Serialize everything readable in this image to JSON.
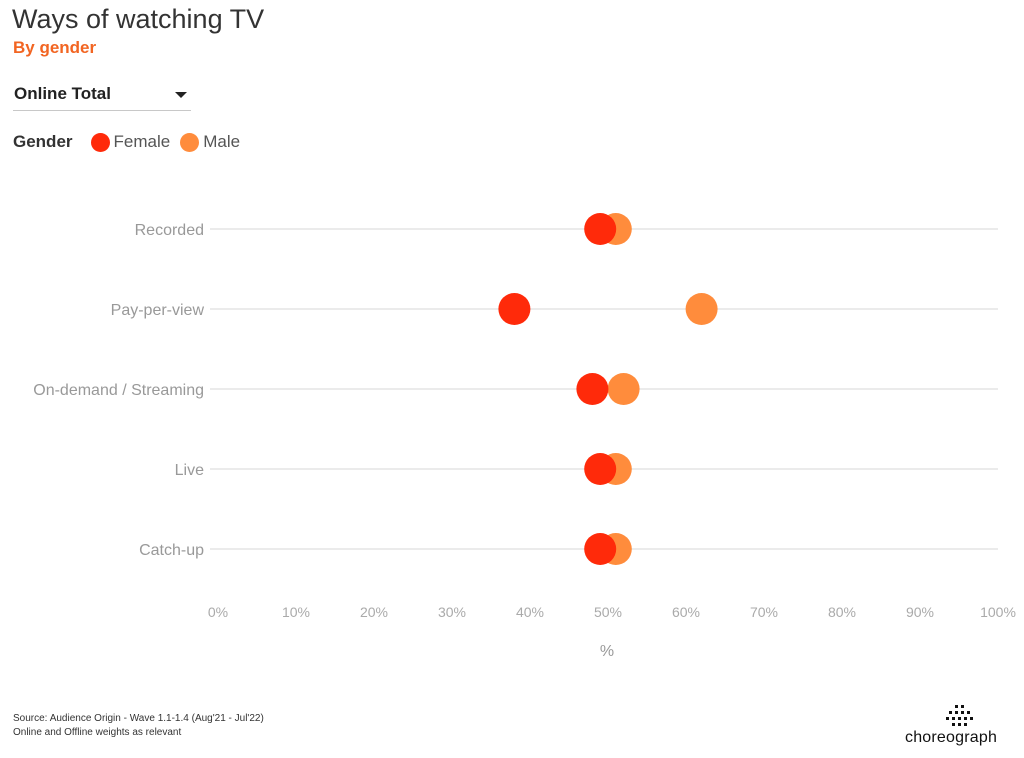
{
  "header": {
    "title": "Ways of watching TV",
    "subtitle": "By gender"
  },
  "filter": {
    "selected": "Online Total"
  },
  "legend": {
    "title": "Gender",
    "items": [
      {
        "label": "Female",
        "color": "#ff2a0a"
      },
      {
        "label": "Male",
        "color": "#ff8c3c"
      }
    ]
  },
  "chart_data": {
    "type": "scatter",
    "subtype": "dumbbell",
    "orientation": "horizontal",
    "categories": [
      "Recorded",
      "Pay-per-view",
      "On-demand / Streaming",
      "Live",
      "Catch-up"
    ],
    "series": [
      {
        "name": "Female",
        "color": "#ff2a0a",
        "values": [
          49,
          38,
          48,
          49,
          49
        ]
      },
      {
        "name": "Male",
        "color": "#ff8c3c",
        "values": [
          51,
          62,
          52,
          51,
          51
        ]
      }
    ],
    "xlim": [
      0,
      100
    ],
    "xticks": [
      "0%",
      "10%",
      "20%",
      "30%",
      "40%",
      "50%",
      "60%",
      "70%",
      "80%",
      "90%",
      "100%"
    ],
    "xlabel": "%",
    "ylabel": "",
    "grid": "horizontal lines per category",
    "legend_placement": "top-left"
  },
  "footer": {
    "source_line1": "Source: Audience Origin - Wave 1.1-1.4 (Aug'21 - Jul'22)",
    "source_line2": "Online and Offline weights as relevant",
    "logo_text": "choreograph"
  }
}
